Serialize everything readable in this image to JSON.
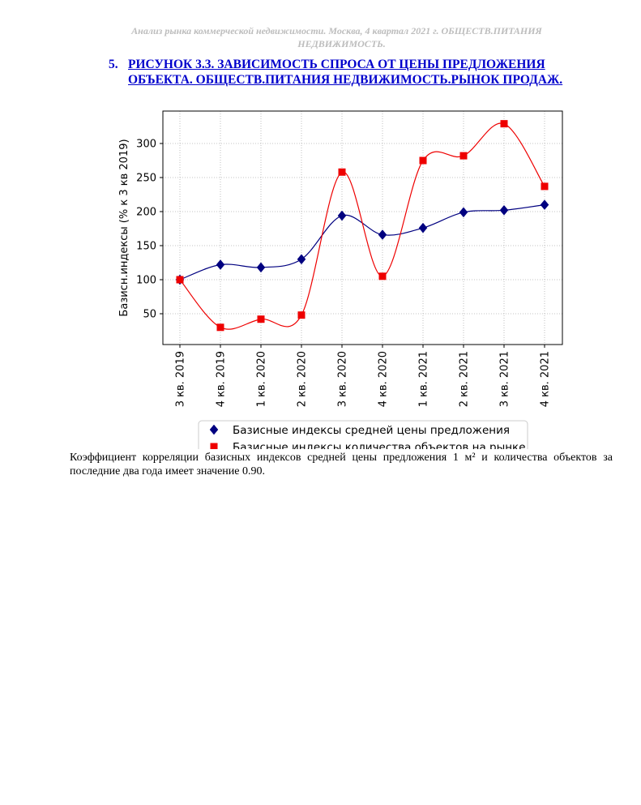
{
  "header": {
    "line1": "Анализ рынка коммерческой недвижимости.   Москва,  4 квартал 2021 г.   ОБЩЕСТВ.ПИТАНИЯ",
    "line2": "НЕДВИЖИМОСТЬ."
  },
  "figure": {
    "number": "5.",
    "title_line1": "РИСУНОК 3.3. ЗАВИСИМОСТЬ СПРОСА ОТ ЦЕНЫ ПРЕДЛОЖЕНИЯ",
    "title_line2": "ОБЪЕКТА.  ОБЩЕСТВ.ПИТАНИЯ НЕДВИЖИМОСТЬ.РЫНОК ПРОДАЖ."
  },
  "chart_data": {
    "type": "line",
    "ylabel": "Базисн.индексы (% к 3 кв 2019)",
    "xlabel": "",
    "categories": [
      "3 кв. 2019",
      "4 кв. 2019",
      "1 кв. 2020",
      "2 кв. 2020",
      "3 кв. 2020",
      "4 кв. 2020",
      "1 кв. 2021",
      "2 кв. 2021",
      "3 кв. 2021",
      "4 кв. 2021"
    ],
    "yticks": [
      50,
      100,
      150,
      200,
      250,
      300
    ],
    "ylim": [
      28,
      345
    ],
    "grid": true,
    "legend_position": "bottom",
    "series": [
      {
        "name": "Базисные индексы средней цены предложения",
        "marker": "diamond",
        "color": "#000080",
        "values": [
          100,
          122,
          118,
          130,
          194,
          166,
          176,
          199,
          202,
          210
        ]
      },
      {
        "name": "Базисные индексы количества объектов на рынке",
        "marker": "square",
        "color": "#ee0000",
        "values": [
          100,
          30,
          42,
          48,
          258,
          105,
          275,
          282,
          329,
          237
        ]
      }
    ]
  },
  "body": {
    "line1": "Коэффициент корреляции базисных индексов средней цены предложения 1 м² и количества объектов за",
    "line2": "последние два года имеет значение 0.90."
  }
}
